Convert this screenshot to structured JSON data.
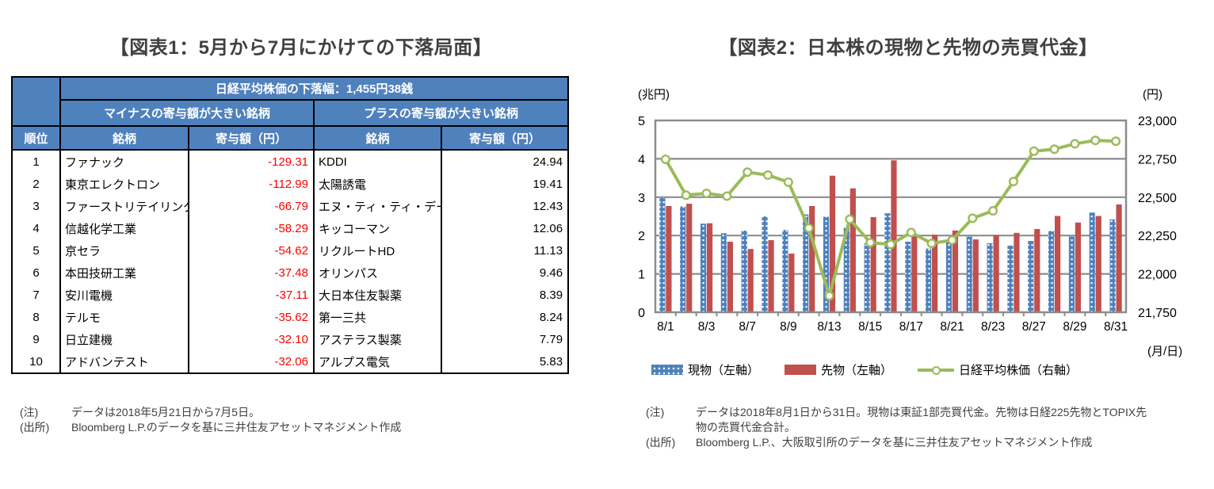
{
  "figure1": {
    "title": "【図表1：5月から7月にかけての下落局面】",
    "table": {
      "header_top": "日経平均株価の下落幅：1,455円38銭",
      "header_minus": "マイナスの寄与額が大きい銘柄",
      "header_plus": "プラスの寄与額が大きい銘柄",
      "col_rank": "順位",
      "col_name": "銘柄",
      "col_value": "寄与額（円）",
      "rows": [
        {
          "rank": "1",
          "minus_name": "ファナック",
          "minus_value": "-129.31",
          "plus_name": "KDDI",
          "plus_value": "24.94"
        },
        {
          "rank": "2",
          "minus_name": "東京エレクトロン",
          "minus_value": "-112.99",
          "plus_name": "太陽誘電",
          "plus_value": "19.41"
        },
        {
          "rank": "3",
          "minus_name": "ファーストリテイリング",
          "minus_value": "-66.79",
          "plus_name": "エヌ・ティ・ティ・データ",
          "plus_value": "12.43"
        },
        {
          "rank": "4",
          "minus_name": "信越化学工業",
          "minus_value": "-58.29",
          "plus_name": "キッコーマン",
          "plus_value": "12.06"
        },
        {
          "rank": "5",
          "minus_name": "京セラ",
          "minus_value": "-54.62",
          "plus_name": "リクルートHD",
          "plus_value": "11.13"
        },
        {
          "rank": "6",
          "minus_name": "本田技研工業",
          "minus_value": "-37.48",
          "plus_name": "オリンパス",
          "plus_value": "9.46"
        },
        {
          "rank": "7",
          "minus_name": "安川電機",
          "minus_value": "-37.11",
          "plus_name": "大日本住友製薬",
          "plus_value": "8.39"
        },
        {
          "rank": "8",
          "minus_name": "テルモ",
          "minus_value": "-35.62",
          "plus_name": "第一三共",
          "plus_value": "8.24"
        },
        {
          "rank": "9",
          "minus_name": "日立建機",
          "minus_value": "-32.10",
          "plus_name": "アステラス製薬",
          "plus_value": "7.79"
        },
        {
          "rank": "10",
          "minus_name": "アドバンテスト",
          "minus_value": "-32.06",
          "plus_name": "アルプス電気",
          "plus_value": "5.83"
        }
      ]
    },
    "notes": {
      "note_label": "(注)",
      "note_text": "データは2018年5月21日から7月5日。",
      "source_label": "(出所)",
      "source_text": "Bloomberg L.P.のデータを基に三井住友アセットマネジメント作成"
    }
  },
  "figure2": {
    "title": "【図表2：日本株の現物と先物の売買代金】",
    "notes": {
      "note_label": "(注)",
      "note_text": "データは2018年8月1日から31日。現物は東証1部売買代金。先物は日経225先物とTOPIX先物の売買代金合計。",
      "source_label": "(出所)",
      "source_text": "Bloomberg L.P.、大阪取引所のデータを基に三井住友アセットマネジメント作成"
    }
  },
  "chart_data": {
    "type": "combo-bar-line",
    "title": "日本株の現物と先物の売買代金",
    "categories": [
      "8/1",
      "8/2",
      "8/3",
      "8/6",
      "8/7",
      "8/8",
      "8/9",
      "8/10",
      "8/13",
      "8/14",
      "8/15",
      "8/16",
      "8/17",
      "8/20",
      "8/21",
      "8/22",
      "8/23",
      "8/24",
      "8/27",
      "8/28",
      "8/29",
      "8/30",
      "8/31"
    ],
    "series": [
      {
        "name": "現物（左軸）",
        "type": "bar",
        "axis": "left",
        "color": "#4F81BD",
        "pattern": "white-dots",
        "values": [
          2.98,
          2.76,
          2.31,
          2.06,
          2.13,
          2.5,
          2.15,
          2.55,
          2.49,
          2.2,
          1.8,
          2.58,
          1.84,
          1.66,
          1.84,
          1.97,
          1.8,
          1.74,
          1.86,
          2.12,
          1.97,
          2.6,
          2.42
        ]
      },
      {
        "name": "先物（左軸）",
        "type": "bar",
        "axis": "left",
        "color": "#C0504D",
        "pattern": "solid",
        "values": [
          2.77,
          2.83,
          2.32,
          1.84,
          1.65,
          1.88,
          1.53,
          2.77,
          3.56,
          3.23,
          2.48,
          3.96,
          1.98,
          2.02,
          2.13,
          1.9,
          2.01,
          2.07,
          2.17,
          2.51,
          2.34,
          2.51,
          2.81
        ]
      },
      {
        "name": "日経平均株価（右軸）",
        "type": "line",
        "axis": "right",
        "color": "#9BBB59",
        "marker": "white-circle",
        "values": [
          22747,
          22513,
          22525,
          22507,
          22663,
          22644,
          22598,
          22298,
          21857,
          22356,
          22204,
          22192,
          22270,
          22199,
          22220,
          22363,
          22411,
          22602,
          22800,
          22813,
          22848,
          22870,
          22865
        ]
      }
    ],
    "left_axis": {
      "title": "(兆円)",
      "min": 0,
      "max": 5,
      "ticks": [
        0,
        1,
        2,
        3,
        4,
        5
      ]
    },
    "right_axis": {
      "title": "(円)",
      "min": 21750,
      "max": 23000,
      "ticks": [
        21750,
        22000,
        22250,
        22500,
        22750,
        23000
      ],
      "labels": [
        "21,750",
        "22,000",
        "22,250",
        "22,500",
        "22,750",
        "23,000"
      ]
    },
    "x_axis": {
      "title": "(月/日)",
      "labeled_indices": [
        0,
        2,
        4,
        6,
        8,
        10,
        12,
        14,
        16,
        18,
        20,
        22
      ]
    },
    "grid": true,
    "legend_position": "bottom"
  }
}
